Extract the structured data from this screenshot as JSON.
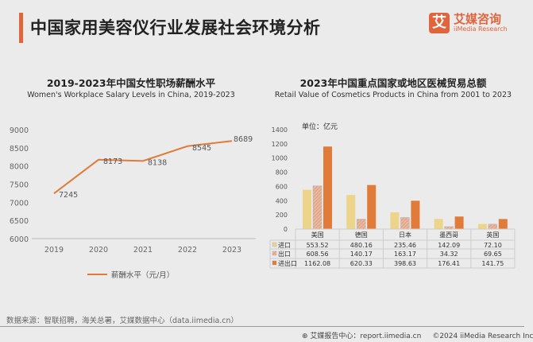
{
  "header": {
    "title": "中国家用美容仪行业发展社会环境分析",
    "logo_mark": "艾",
    "logo_cn": "艾媒咨询",
    "logo_en": "iiMedia Research"
  },
  "chart_data": [
    {
      "type": "line",
      "title": "2019-2023年中国女性职场薪酬水平",
      "subtitle": "Women's Workplace Salary Levels in China, 2019-2023",
      "x": [
        "2019",
        "2020",
        "2021",
        "2022",
        "2023"
      ],
      "series": [
        {
          "name": "薪酬水平（元/月）",
          "values": [
            7245,
            8173,
            8138,
            8545,
            8689
          ],
          "color": "#e07b39"
        }
      ],
      "ylim": [
        6000,
        9000
      ],
      "yticks": [
        6000,
        6500,
        7000,
        7500,
        8000,
        8500,
        9000
      ],
      "legend": "bottom"
    },
    {
      "type": "bar",
      "title": "2023年中国重点国家或地区医械贸易总额",
      "subtitle": "Retail Value of Cosmetics Products in China from 2001 to 2023",
      "unit": "单位：亿元",
      "categories": [
        "美国",
        "德国",
        "日本",
        "墨西哥",
        "英国"
      ],
      "series": [
        {
          "name": "进口",
          "values": [
            553.52,
            480.16,
            235.46,
            142.09,
            72.1
          ],
          "labels": [
            "553.52",
            "480.16",
            "235.46",
            "142.09",
            "72.10"
          ],
          "color": "#ecd48a"
        },
        {
          "name": "出口",
          "values": [
            608.56,
            140.17,
            163.17,
            34.32,
            69.65
          ],
          "labels": [
            "608.56",
            "140.17",
            "163.17",
            "34.32",
            "69.65"
          ],
          "color": "#e8a77c"
        },
        {
          "name": "进出口",
          "values": [
            1162.08,
            620.33,
            398.63,
            176.41,
            141.75
          ],
          "labels": [
            "1162.08",
            "620.33",
            "398.63",
            "176.41",
            "141.75"
          ],
          "color": "#e07b39"
        }
      ],
      "ylim": [
        0,
        1400
      ],
      "yticks": [
        0,
        200,
        400,
        600,
        800,
        1000,
        1200,
        1400
      ],
      "legend": "data-table"
    }
  ],
  "footer": {
    "source": "数据来源：智联招聘，海关总署，艾媒数据中心（data.iimedia.cn）",
    "report": "艾媒报告中心：report.iimedia.cn",
    "copyright": "©2024  iiMedia Research  Inc"
  }
}
